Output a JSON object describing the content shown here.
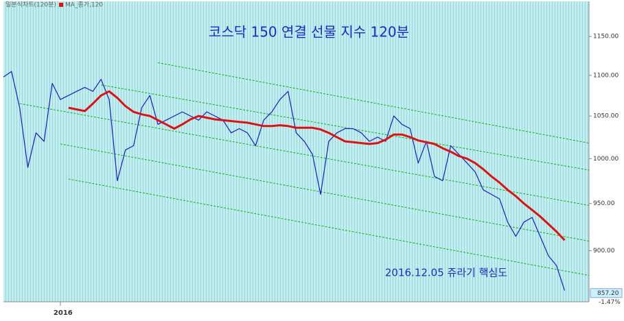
{
  "chart_data": {
    "type": "line",
    "title": "코스닥 150 연결 선물 지수 120분",
    "annotation": "2016.12.05 쥬라기 핵심도",
    "categories": [
      null,
      null,
      null,
      null,
      null,
      null,
      null,
      "2016",
      null,
      null,
      null,
      null,
      null,
      null,
      null,
      null,
      null,
      null,
      null,
      null,
      null,
      null,
      null,
      null,
      null,
      null,
      null,
      null,
      null,
      null,
      null,
      null,
      null,
      null,
      null,
      null,
      null,
      null,
      null,
      null,
      null,
      null,
      null,
      null,
      null,
      null,
      null,
      null,
      null,
      null,
      null,
      null,
      null,
      null,
      null,
      null,
      null,
      null,
      null,
      null,
      null,
      null,
      null,
      null,
      null,
      null,
      null,
      null,
      null,
      null
    ],
    "xlim": [
      0,
      72
    ],
    "series": [
      {
        "name": "일본식차트(120분)",
        "color": "#1a1acc",
        "values": [
          1098,
          1105,
          1060,
          990,
          1030,
          1020,
          1090,
          1070,
          1075,
          1080,
          1085,
          1080,
          1095,
          1070,
          975,
          1010,
          1015,
          1060,
          1075,
          1040,
          1045,
          1050,
          1055,
          1050,
          1045,
          1055,
          1050,
          1045,
          1030,
          1035,
          1030,
          1015,
          1045,
          1055,
          1070,
          1080,
          1030,
          1020,
          1005,
          960,
          1020,
          1030,
          1035,
          1035,
          1030,
          1020,
          1025,
          1020,
          1050,
          1040,
          1035,
          995,
          1020,
          980,
          975,
          1015,
          1005,
          995,
          985,
          965,
          960,
          955,
          930,
          915,
          930,
          935,
          915,
          895,
          885,
          860
        ]
      },
      {
        "name": "MA_종가,120",
        "color": "#e01010",
        "values": [
          null,
          null,
          null,
          null,
          null,
          null,
          null,
          null,
          1060,
          1058,
          1056,
          1065,
          1075,
          1080,
          1072,
          1062,
          1055,
          1052,
          1050,
          1045,
          1040,
          1035,
          1040,
          1046,
          1050,
          1048,
          1046,
          1045,
          1044,
          1043,
          1042,
          1040,
          1038,
          1038,
          1039,
          1038,
          1036,
          1036,
          1036,
          1034,
          1030,
          1025,
          1020,
          1019,
          1018,
          1017,
          1018,
          1022,
          1028,
          1028,
          1025,
          1021,
          1019,
          1017,
          1012,
          1008,
          1003,
          1000,
          995,
          988,
          980,
          973,
          965,
          958,
          950,
          943,
          936,
          928,
          920,
          911
        ]
      }
    ],
    "trend_lines": [
      {
        "from": 19,
        "to": 72,
        "start": 1116,
        "end": 1018
      },
      {
        "from": 12,
        "to": 72,
        "start": 1088,
        "end": 987
      },
      {
        "from": 2,
        "to": 72,
        "start": 1065,
        "end": 948
      },
      {
        "from": 7,
        "to": 72,
        "start": 1017,
        "end": 910
      },
      {
        "from": 8,
        "to": 72,
        "start": 977,
        "end": 875
      }
    ],
    "trend_color": "#10b010",
    "ylim": [
      849,
      1199
    ],
    "log_scale": true,
    "yticks": [
      {
        "value": 900,
        "label": "900.00"
      },
      {
        "value": 950,
        "label": "950.00"
      },
      {
        "value": 1000,
        "label": "1000.00"
      },
      {
        "value": 1050,
        "label": "1050.00"
      },
      {
        "value": 1100,
        "label": "1100.00"
      },
      {
        "value": 1150,
        "label": "1150.00"
      }
    ],
    "last_value": {
      "value": 857.2,
      "label": "857.20"
    },
    "change_label": "-1.47%"
  }
}
